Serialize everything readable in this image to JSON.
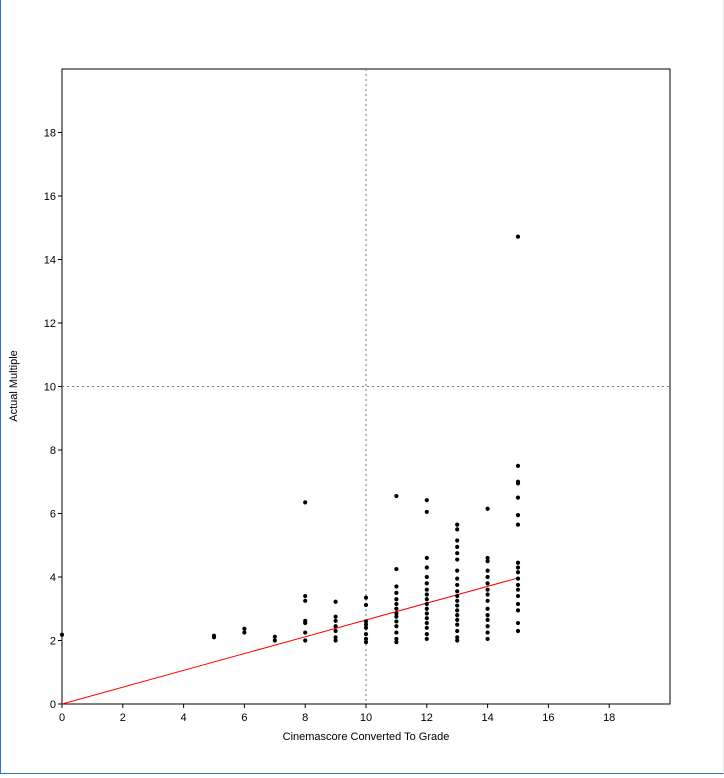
{
  "chart_data": {
    "type": "scatter",
    "xlabel": "Cinemascore Converted To Grade",
    "ylabel": "Actual Multiple",
    "xlim": [
      0,
      20
    ],
    "ylim": [
      0,
      20
    ],
    "x_ticks": [
      0,
      2,
      4,
      6,
      8,
      10,
      12,
      14,
      16,
      18
    ],
    "y_ticks": [
      0,
      2,
      4,
      6,
      8,
      10,
      12,
      14,
      16,
      18
    ],
    "reference_lines": {
      "vertical_x": 10,
      "horizontal_y": 10,
      "style": "dotted"
    },
    "fit_line": {
      "from": [
        0,
        0
      ],
      "to": [
        15,
        3.97
      ],
      "color": "#ff0000"
    },
    "point_color": "#000000",
    "grid": false,
    "points": [
      [
        0,
        2.18
      ],
      [
        5,
        2.1
      ],
      [
        5,
        2.15
      ],
      [
        6,
        2.25
      ],
      [
        6,
        2.37
      ],
      [
        7,
        2.0
      ],
      [
        7,
        2.12
      ],
      [
        8,
        2.0
      ],
      [
        8,
        2.25
      ],
      [
        8,
        2.55
      ],
      [
        8,
        2.62
      ],
      [
        8,
        3.25
      ],
      [
        8,
        3.4
      ],
      [
        8,
        6.35
      ],
      [
        9,
        2.0
      ],
      [
        9,
        2.1
      ],
      [
        9,
        2.3
      ],
      [
        9,
        2.45
      ],
      [
        9,
        2.62
      ],
      [
        9,
        2.75
      ],
      [
        9,
        3.22
      ],
      [
        10,
        1.95
      ],
      [
        10,
        2.05
      ],
      [
        10,
        2.2
      ],
      [
        10,
        2.4
      ],
      [
        10,
        2.5
      ],
      [
        10,
        2.6
      ],
      [
        10,
        3.12
      ],
      [
        10,
        3.35
      ],
      [
        11,
        1.95
      ],
      [
        11,
        2.05
      ],
      [
        11,
        2.25
      ],
      [
        11,
        2.45
      ],
      [
        11,
        2.6
      ],
      [
        11,
        2.75
      ],
      [
        11,
        2.85
      ],
      [
        11,
        3.0
      ],
      [
        11,
        3.15
      ],
      [
        11,
        3.3
      ],
      [
        11,
        3.5
      ],
      [
        11,
        3.7
      ],
      [
        11,
        4.25
      ],
      [
        11,
        6.55
      ],
      [
        12,
        2.05
      ],
      [
        12,
        2.2
      ],
      [
        12,
        2.4
      ],
      [
        12,
        2.55
      ],
      [
        12,
        2.7
      ],
      [
        12,
        2.85
      ],
      [
        12,
        3.0
      ],
      [
        12,
        3.15
      ],
      [
        12,
        3.3
      ],
      [
        12,
        3.45
      ],
      [
        12,
        3.6
      ],
      [
        12,
        3.8
      ],
      [
        12,
        4.0
      ],
      [
        12,
        4.3
      ],
      [
        12,
        4.6
      ],
      [
        12,
        6.05
      ],
      [
        12,
        6.42
      ],
      [
        13,
        2.0
      ],
      [
        13,
        2.1
      ],
      [
        13,
        2.3
      ],
      [
        13,
        2.5
      ],
      [
        13,
        2.65
      ],
      [
        13,
        2.8
      ],
      [
        13,
        2.95
      ],
      [
        13,
        3.1
      ],
      [
        13,
        3.25
      ],
      [
        13,
        3.4
      ],
      [
        13,
        3.55
      ],
      [
        13,
        3.75
      ],
      [
        13,
        3.95
      ],
      [
        13,
        4.2
      ],
      [
        13,
        4.55
      ],
      [
        13,
        4.75
      ],
      [
        13,
        4.95
      ],
      [
        13,
        5.15
      ],
      [
        13,
        5.5
      ],
      [
        13,
        5.65
      ],
      [
        14,
        2.05
      ],
      [
        14,
        2.25
      ],
      [
        14,
        2.45
      ],
      [
        14,
        2.65
      ],
      [
        14,
        2.8
      ],
      [
        14,
        3.0
      ],
      [
        14,
        3.25
      ],
      [
        14,
        3.45
      ],
      [
        14,
        3.6
      ],
      [
        14,
        3.8
      ],
      [
        14,
        4.0
      ],
      [
        14,
        4.2
      ],
      [
        14,
        4.5
      ],
      [
        14,
        4.6
      ],
      [
        14,
        6.15
      ],
      [
        15,
        2.3
      ],
      [
        15,
        2.55
      ],
      [
        15,
        2.95
      ],
      [
        15,
        3.15
      ],
      [
        15,
        3.4
      ],
      [
        15,
        3.6
      ],
      [
        15,
        3.75
      ],
      [
        15,
        3.95
      ],
      [
        15,
        4.15
      ],
      [
        15,
        4.3
      ],
      [
        15,
        4.45
      ],
      [
        15,
        5.65
      ],
      [
        15,
        5.95
      ],
      [
        15,
        6.5
      ],
      [
        15,
        6.95
      ],
      [
        15,
        7.0
      ],
      [
        15,
        7.5
      ],
      [
        15,
        14.72
      ]
    ]
  }
}
